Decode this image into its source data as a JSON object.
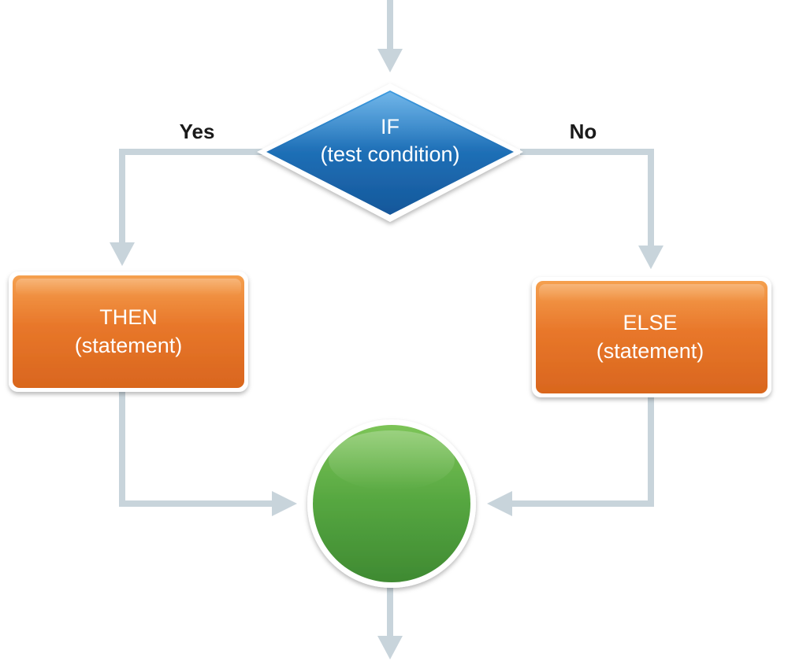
{
  "decision": {
    "line1": "IF",
    "line2": "(test condition)",
    "color": "#1f6fb6"
  },
  "branches": {
    "yes_label": "Yes",
    "no_label": "No"
  },
  "then_box": {
    "line1": "THEN",
    "line2": "(statement)",
    "color": "#e8772a"
  },
  "else_box": {
    "line1": "ELSE",
    "line2": "(statement)",
    "color": "#e8772a"
  },
  "end_node": {
    "color": "#4e9f3d"
  },
  "connector_color": "#c8d4db"
}
